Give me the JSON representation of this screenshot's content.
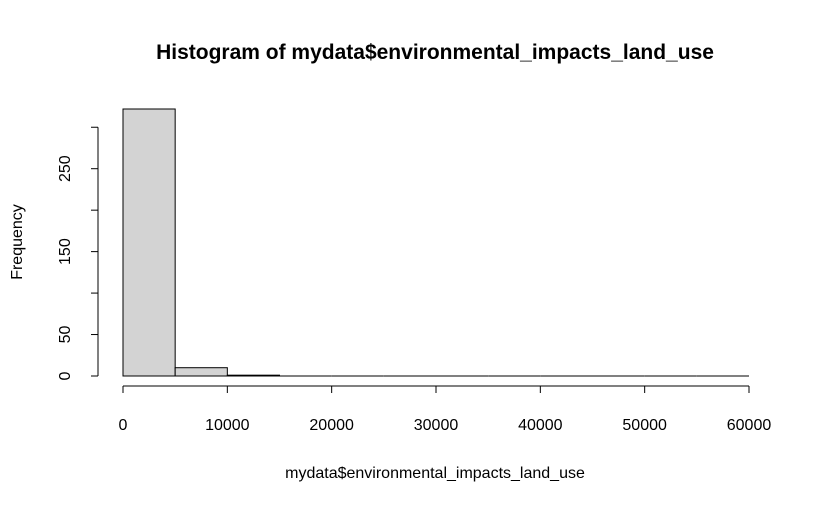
{
  "chart_data": {
    "type": "bar",
    "title": "Histogram of mydata$environmental_impacts_land_use",
    "xlabel": "mydata$environmental_impacts_land_use",
    "ylabel": "Frequency",
    "bins": [
      {
        "x0": 0,
        "x1": 5000,
        "count": 322
      },
      {
        "x0": 5000,
        "x1": 10000,
        "count": 10
      },
      {
        "x0": 10000,
        "x1": 15000,
        "count": 1
      },
      {
        "x0": 15000,
        "x1": 20000,
        "count": 0
      },
      {
        "x0": 20000,
        "x1": 25000,
        "count": 0
      },
      {
        "x0": 25000,
        "x1": 30000,
        "count": 0
      },
      {
        "x0": 30000,
        "x1": 35000,
        "count": 0
      },
      {
        "x0": 35000,
        "x1": 40000,
        "count": 0
      },
      {
        "x0": 40000,
        "x1": 45000,
        "count": 0
      },
      {
        "x0": 45000,
        "x1": 50000,
        "count": 0
      },
      {
        "x0": 50000,
        "x1": 55000,
        "count": 0
      },
      {
        "x0": 55000,
        "x1": 60000,
        "count": 0
      }
    ],
    "xlim": [
      0,
      60000
    ],
    "ylim": [
      0,
      322
    ],
    "x_ticks": [
      0,
      10000,
      20000,
      30000,
      40000,
      50000,
      60000
    ],
    "y_ticks": [
      0,
      50,
      100,
      150,
      200,
      250,
      300
    ],
    "y_tick_labels": [
      "0",
      "50",
      "",
      "150",
      "",
      "250",
      ""
    ],
    "bar_fill": "#d3d3d3",
    "bar_stroke": "#000000",
    "grid": false,
    "legend": "none"
  }
}
